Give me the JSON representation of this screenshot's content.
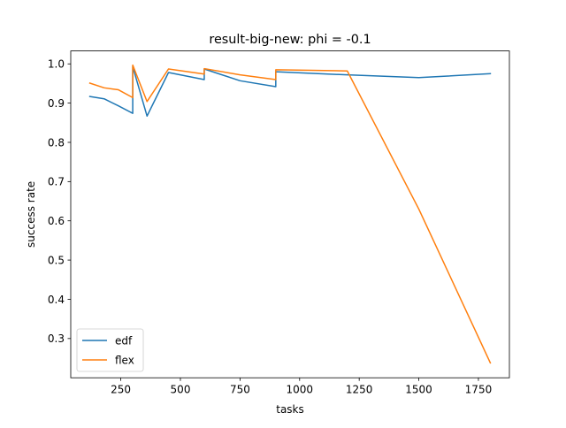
{
  "chart_data": {
    "type": "line",
    "title": "result-big-new: phi = -0.1",
    "xlabel": "tasks",
    "ylabel": "success rate",
    "xlim": [
      40,
      1880
    ],
    "ylim": [
      0.2,
      1.033
    ],
    "xticks": [
      250,
      500,
      750,
      1000,
      1250,
      1500,
      1750
    ],
    "xtick_labels": [
      "250",
      "500",
      "750",
      "1000",
      "1250",
      "1500",
      "1750"
    ],
    "yticks": [
      0.3,
      0.4,
      0.5,
      0.6,
      0.7,
      0.8,
      0.9,
      1.0
    ],
    "ytick_labels": [
      "0.3",
      "0.4",
      "0.5",
      "0.6",
      "0.7",
      "0.8",
      "0.9",
      "1.0"
    ],
    "grid": false,
    "legend_position": "lower-left",
    "series": [
      {
        "name": "edf",
        "color": "#1f77b4",
        "x": [
          120,
          180,
          240,
          300,
          300,
          360,
          450,
          600,
          600,
          750,
          900,
          900,
          1200,
          1500,
          1800
        ],
        "y": [
          0.917,
          0.911,
          0.893,
          0.874,
          0.993,
          0.867,
          0.978,
          0.96,
          0.987,
          0.957,
          0.942,
          0.98,
          0.972,
          0.965,
          0.975
        ]
      },
      {
        "name": "flex",
        "color": "#ff7f0e",
        "x": [
          120,
          180,
          240,
          300,
          300,
          360,
          450,
          600,
          600,
          750,
          900,
          900,
          1200,
          1500,
          1800
        ],
        "y": [
          0.951,
          0.939,
          0.934,
          0.914,
          0.997,
          0.904,
          0.987,
          0.974,
          0.988,
          0.972,
          0.96,
          0.985,
          0.982,
          0.63,
          0.238
        ]
      }
    ]
  }
}
